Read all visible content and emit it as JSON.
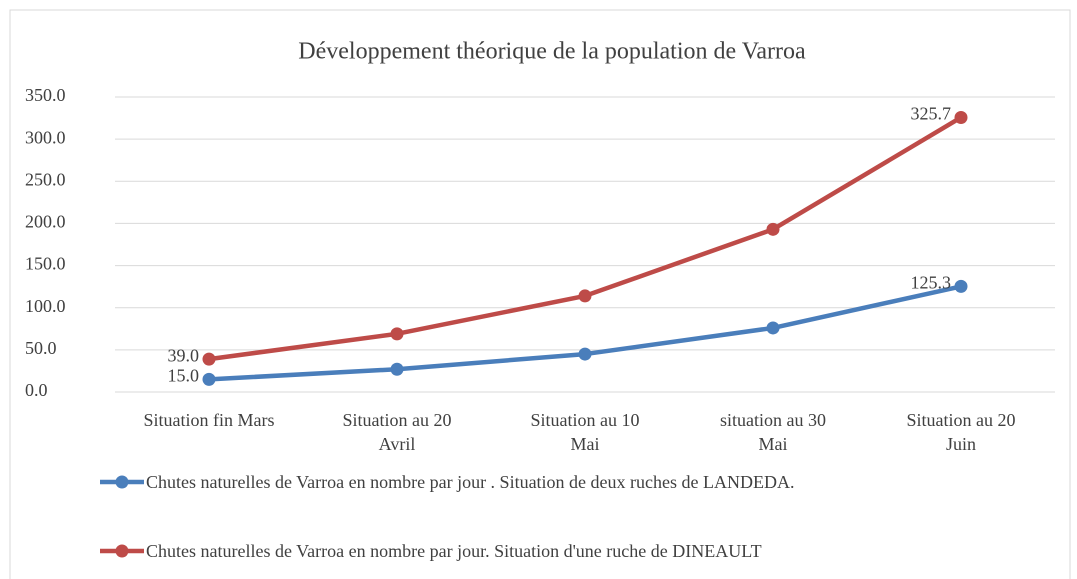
{
  "chart_data": {
    "type": "line",
    "title": "Développement théorique de la population de Varroa",
    "categories": [
      "Situation fin Mars",
      "Situation au 20\nAvril",
      "Situation au 10\nMai",
      "situation au 30\nMai",
      "Situation au 20\nJuin"
    ],
    "series": [
      {
        "name": "Chutes naturelles de Varroa en nombre par jour . Situation de deux ruches de LANDEDA.",
        "color": "#4a7ebb",
        "values": [
          15.0,
          27,
          45,
          76,
          125.3
        ],
        "value_labels": [
          "15.0",
          null,
          null,
          null,
          "125.3"
        ]
      },
      {
        "name": "Chutes naturelles de Varroa en nombre par jour. Situation d'une ruche de DINEAULT",
        "color": "#be4b48",
        "values": [
          39.0,
          69,
          114,
          193,
          325.7
        ],
        "value_labels": [
          "39.0",
          null,
          null,
          null,
          "325.7"
        ]
      }
    ],
    "ylim": [
      0,
      350
    ],
    "yticks": [
      {
        "value": 0,
        "label": "0.0"
      },
      {
        "value": 50,
        "label": "50.0"
      },
      {
        "value": 100,
        "label": "100.0"
      },
      {
        "value": 150,
        "label": "150.0"
      },
      {
        "value": 200,
        "label": "200.0"
      },
      {
        "value": 250,
        "label": "250.0"
      },
      {
        "value": 300,
        "label": "300.0"
      },
      {
        "value": 350,
        "label": "350.0"
      }
    ],
    "grid": true,
    "legend": "bottom"
  }
}
